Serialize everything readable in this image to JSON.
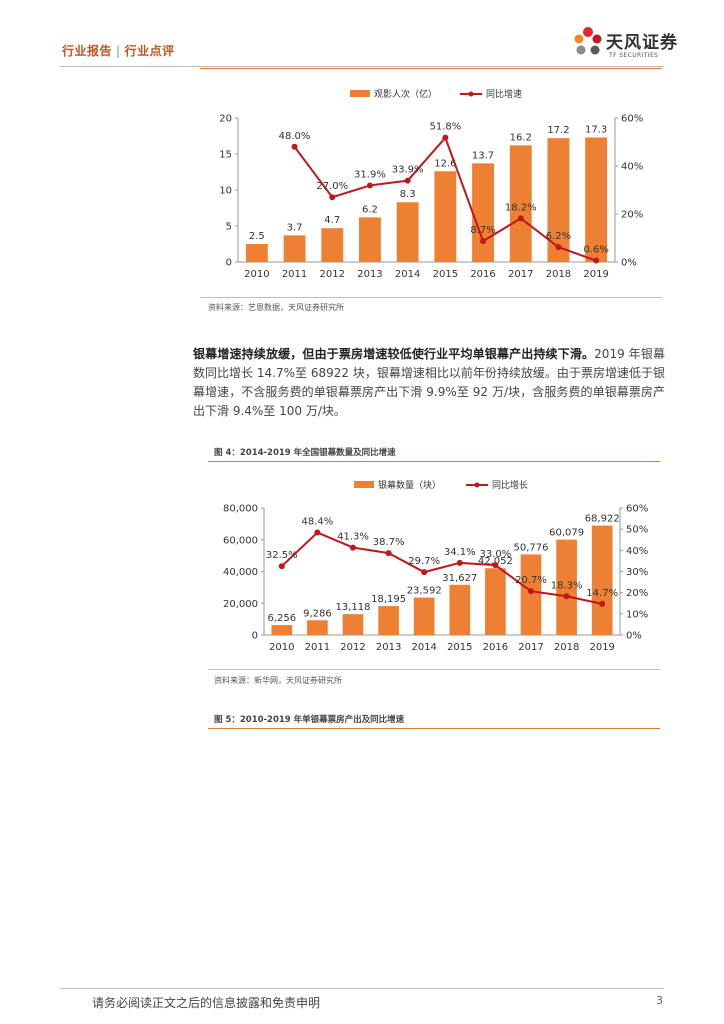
{
  "header": {
    "section": "行业报告",
    "separator": "|",
    "subsection": "行业点评"
  },
  "logo": {
    "cn": "天风证券",
    "en": "TF SECURITIES"
  },
  "colors": {
    "bar": "#ee8033",
    "line": "#c0161c",
    "accent": "#e07a2e"
  },
  "chart1": {
    "source": "资料来源：艺恩数据，天风证券研究所"
  },
  "paragraph": {
    "bold": "银幕增速持续放缓，但由于票房增速较低使行业平均单银幕产出持续下滑。",
    "text": "2019 年银幕数同比增长 14.7%至 68922 块，银幕增速相比以前年份持续放缓。由于票房增速低于银幕增速，不含服务费的单银幕票房产出下滑 9.9%至 92 万/块，含服务费的单银幕票房产出下滑 9.4%至 100 万/块。"
  },
  "chart2": {
    "figure_title": "图 4：2014-2019 年全国银幕数量及同比增速",
    "source": "资料来源：新华网，天风证券研究所"
  },
  "figure5": {
    "title": "图 5：2010-2019 年单银幕票房产出及同比增速"
  },
  "footer": {
    "disclaimer": "请务必阅读正文之后的信息披露和免责申明",
    "page": "3"
  },
  "chart_data": [
    {
      "type": "bar",
      "categories": [
        "2010",
        "2011",
        "2012",
        "2013",
        "2014",
        "2015",
        "2016",
        "2017",
        "2018",
        "2019"
      ],
      "series": [
        {
          "name": "观影人次（亿）",
          "kind": "bar",
          "axis": "left",
          "values": [
            2.5,
            3.7,
            4.7,
            6.2,
            8.3,
            12.6,
            13.7,
            16.2,
            17.2,
            17.3
          ],
          "labels": [
            "2.5",
            "3.7",
            "4.7",
            "6.2",
            "8.3",
            "12.6",
            "13.7",
            "16.2",
            "17.2",
            "17.3"
          ]
        },
        {
          "name": "同比增速",
          "kind": "line",
          "axis": "right",
          "values": [
            null,
            48.0,
            27.0,
            31.9,
            33.9,
            51.8,
            8.7,
            18.2,
            6.2,
            0.6
          ],
          "labels": [
            null,
            "48.0%",
            "27.0%",
            "31.9%",
            "33.9%",
            "51.8%",
            "8.7%",
            "18.2%",
            "6.2%",
            "0.6%"
          ]
        }
      ],
      "ylim": [
        0,
        20
      ],
      "yticks": [
        "0",
        "5",
        "10",
        "15",
        "20"
      ],
      "y2lim": [
        0,
        60
      ],
      "y2ticks": [
        "0%",
        "20%",
        "40%",
        "60%"
      ],
      "legend": "top"
    },
    {
      "type": "bar",
      "categories": [
        "2010",
        "2011",
        "2012",
        "2013",
        "2014",
        "2015",
        "2016",
        "2017",
        "2018",
        "2019"
      ],
      "series": [
        {
          "name": "银幕数量（块）",
          "kind": "bar",
          "axis": "left",
          "values": [
            6256,
            9286,
            13118,
            18195,
            23592,
            31627,
            42052,
            50776,
            60079,
            68922
          ],
          "labels": [
            "6,256",
            "9,286",
            "13,118",
            "18,195",
            "23,592",
            "31,627",
            "42,052",
            "50,776",
            "60,079",
            "68,922"
          ]
        },
        {
          "name": "同比增长",
          "kind": "line",
          "axis": "right",
          "values": [
            32.5,
            48.4,
            41.3,
            38.7,
            29.7,
            34.1,
            33.0,
            20.7,
            18.3,
            14.7
          ],
          "labels": [
            "32.5%",
            "48.4%",
            "41.3%",
            "38.7%",
            "29.7%",
            "34.1%",
            "33.0%",
            "20.7%",
            "18.3%",
            "14.7%"
          ]
        }
      ],
      "ylim": [
        0,
        80000
      ],
      "yticks": [
        "0",
        "20,000",
        "40,000",
        "60,000",
        "80,000"
      ],
      "y2lim": [
        0,
        60
      ],
      "y2ticks": [
        "0%",
        "10%",
        "20%",
        "30%",
        "40%",
        "50%",
        "60%"
      ],
      "legend": "top"
    }
  ]
}
